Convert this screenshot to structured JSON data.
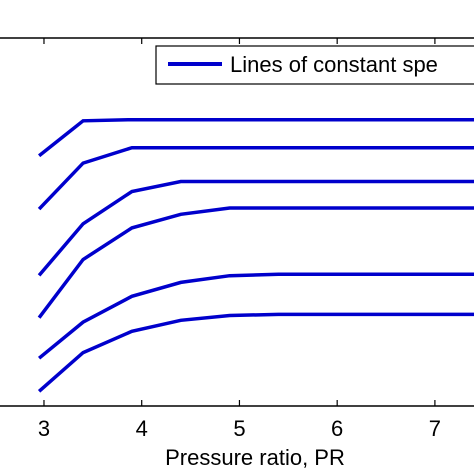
{
  "chart_data": {
    "type": "line",
    "title": "",
    "xlabel": "Pressure ratio, PR",
    "ylabel": "",
    "xlim": [
      2.55,
      7.4
    ],
    "ylim": [
      0,
      10
    ],
    "xticks": [
      3,
      4,
      5,
      6,
      7
    ],
    "grid": false,
    "legend": {
      "location": "top-right",
      "entries": [
        {
          "label": "Lines of constant spe",
          "color": "#0000cc"
        }
      ]
    },
    "series_color": "#0000cc",
    "series": [
      {
        "x": [
          2.95,
          3.4,
          3.9,
          7.4
        ],
        "y": [
          6.8,
          7.75,
          7.78,
          7.78
        ]
      },
      {
        "x": [
          2.95,
          3.4,
          3.9,
          7.4
        ],
        "y": [
          5.35,
          6.6,
          7.02,
          7.02
        ]
      },
      {
        "x": [
          2.95,
          3.4,
          3.9,
          4.4,
          7.4
        ],
        "y": [
          3.55,
          4.95,
          5.83,
          6.1,
          6.1
        ]
      },
      {
        "x": [
          2.95,
          3.4,
          3.9,
          4.4,
          4.9,
          7.4
        ],
        "y": [
          2.4,
          3.98,
          4.84,
          5.21,
          5.38,
          5.38
        ]
      },
      {
        "x": [
          2.95,
          3.4,
          3.9,
          4.4,
          4.9,
          5.4,
          7.4
        ],
        "y": [
          1.3,
          2.28,
          2.98,
          3.36,
          3.54,
          3.58,
          3.58
        ]
      },
      {
        "x": [
          2.95,
          3.4,
          3.9,
          4.4,
          4.9,
          5.4,
          7.4
        ],
        "y": [
          0.4,
          1.45,
          2.03,
          2.33,
          2.46,
          2.49,
          2.49
        ]
      }
    ]
  }
}
